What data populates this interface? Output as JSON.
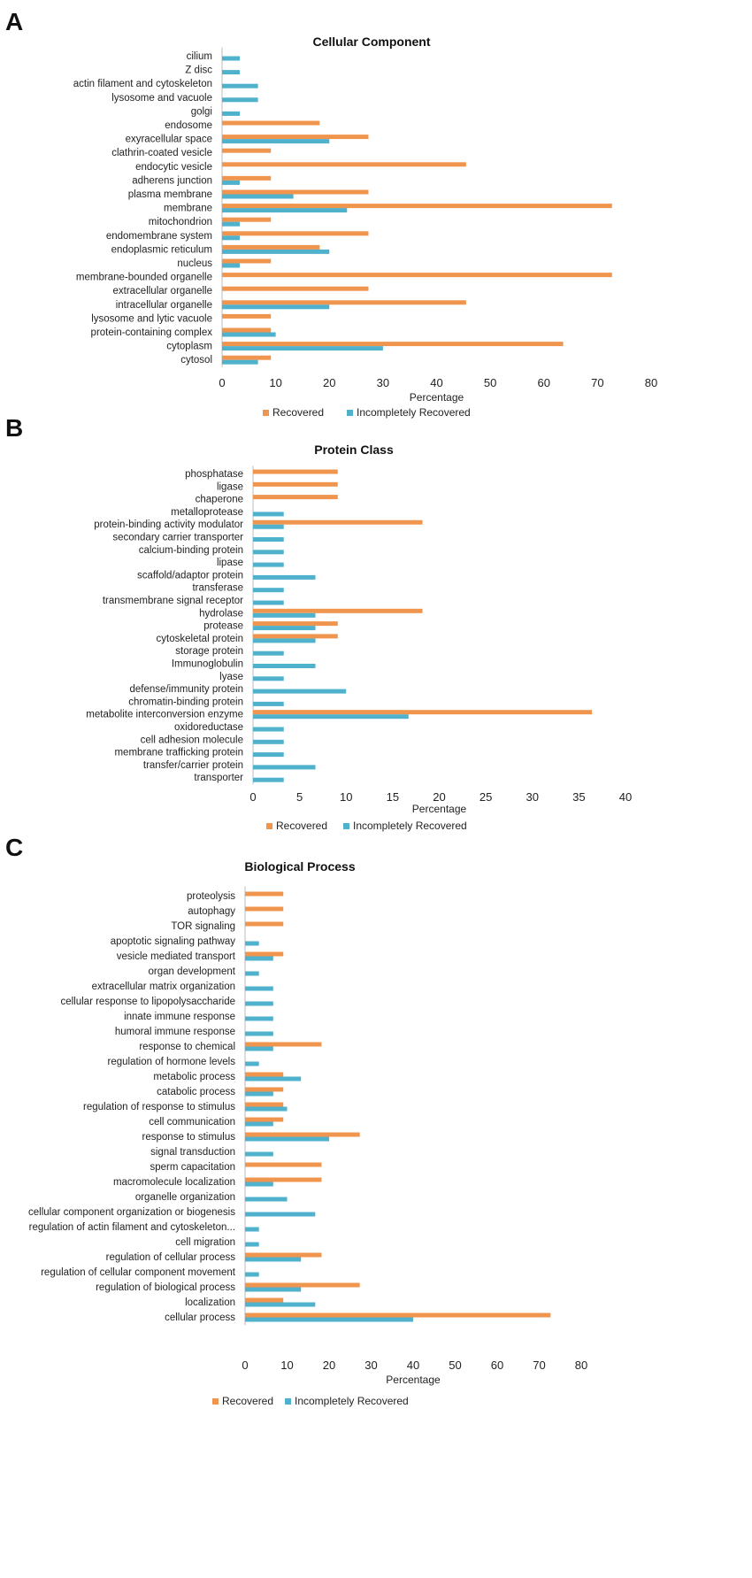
{
  "colors": {
    "recovered": "#F0954E",
    "incompletely_recovered": "#4FB1CC",
    "axis": "#bbbbbb"
  },
  "chart_data": [
    {
      "panel": "A",
      "type": "bar",
      "orientation": "horizontal",
      "title": "Cellular Component",
      "xlabel": "Percentage",
      "ylabel": "",
      "xlim": [
        0,
        80
      ],
      "xticks": [
        "0",
        "10",
        "20",
        "30",
        "40",
        "50",
        "60",
        "70",
        "80"
      ],
      "legend": "bottom",
      "categories": [
        "cilium",
        "Z disc",
        "actin filament and cytoskeleton",
        "lysosome and vacuole",
        "golgi",
        "endosome",
        "exyracellular space",
        "clathrin-coated vesicle",
        "endocytic vesicle",
        "adherens junction",
        "plasma membrane",
        "membrane",
        "mitochondrion",
        "endomembrane system",
        "endoplasmic reticulum",
        "nucleus",
        "membrane-bounded organelle",
        "extracellular organelle",
        "intracellular organelle",
        "lysosome and lytic vacuole",
        "protein-containing complex",
        "cytoplasm",
        "cytosol"
      ],
      "series": [
        {
          "name": "Recovered",
          "values": [
            0,
            0,
            0,
            0,
            0,
            18.2,
            27.3,
            9.1,
            45.5,
            9.1,
            27.3,
            72.7,
            9.1,
            27.3,
            18.2,
            9.1,
            72.7,
            27.3,
            45.5,
            9.1,
            9.1,
            63.6,
            9.1
          ]
        },
        {
          "name": "Incompletely Recovered",
          "values": [
            3.3,
            3.3,
            6.7,
            6.7,
            3.3,
            0,
            20.0,
            0,
            0,
            3.3,
            13.3,
            23.3,
            3.3,
            3.3,
            20.0,
            3.3,
            0,
            0,
            20.0,
            0,
            10.0,
            30.0,
            6.7
          ]
        }
      ]
    },
    {
      "panel": "B",
      "type": "bar",
      "orientation": "horizontal",
      "title": "Protein Class",
      "xlabel": "Percentage",
      "ylabel": "",
      "xlim": [
        0,
        40
      ],
      "xticks": [
        "0",
        "5",
        "10",
        "15",
        "20",
        "25",
        "30",
        "35",
        "40"
      ],
      "legend": "bottom",
      "categories": [
        "phosphatase",
        "ligase",
        "chaperone",
        "metalloprotease",
        "protein-binding activity modulator",
        "secondary carrier transporter",
        "calcium-binding protein",
        "lipase",
        "scaffold/adaptor protein",
        "transferase",
        "transmembrane signal receptor",
        "hydrolase",
        "protease",
        "cytoskeletal protein",
        "storage protein",
        "Immunoglobulin",
        "lyase",
        "defense/immunity protein",
        "chromatin-binding protein",
        "metabolite interconversion enzyme",
        "oxidoreductase",
        "cell adhesion molecule",
        "membrane trafficking protein",
        "transfer/carrier protein",
        "transporter"
      ],
      "series": [
        {
          "name": "Recovered",
          "values": [
            9.1,
            9.1,
            9.1,
            0,
            18.2,
            0,
            0,
            0,
            0,
            0,
            0,
            18.2,
            9.1,
            9.1,
            0,
            0,
            0,
            0,
            0,
            36.4,
            0,
            0,
            0,
            0,
            0
          ]
        },
        {
          "name": "Incompletely Recovered",
          "values": [
            0,
            0,
            0,
            3.3,
            3.3,
            3.3,
            3.3,
            3.3,
            6.7,
            3.3,
            3.3,
            6.7,
            6.7,
            6.7,
            3.3,
            6.7,
            3.3,
            10.0,
            3.3,
            16.7,
            3.3,
            3.3,
            3.3,
            6.7,
            3.3
          ]
        }
      ]
    },
    {
      "panel": "C",
      "type": "bar",
      "orientation": "horizontal",
      "title": "Biological Process",
      "xlabel": "Percentage",
      "ylabel": "",
      "xlim": [
        0,
        80
      ],
      "xticks": [
        "0",
        "10",
        "20",
        "30",
        "40",
        "50",
        "60",
        "70",
        "80"
      ],
      "legend": "bottom",
      "categories": [
        "proteolysis",
        "autophagy",
        "TOR signaling",
        "apoptotic signaling pathway",
        "vesicle mediated transport",
        "organ development",
        "extracellular matrix organization",
        "cellular response to lipopolysaccharide",
        "innate immune response",
        "humoral immune response",
        "response to chemical",
        "regulation of hormone levels",
        "metabolic process",
        "catabolic process",
        "regulation of response to stimulus",
        "cell communication",
        "response to stimulus",
        "signal transduction",
        "sperm capacitation",
        "macromolecule localization",
        "organelle organization",
        "cellular component organization or biogenesis",
        "regulation of actin filament and cytoskeleton...",
        "cell migration",
        "regulation of cellular process",
        "regulation of cellular component movement",
        "regulation of biological process",
        "localization",
        "cellular process"
      ],
      "series": [
        {
          "name": "Recovered",
          "values": [
            9.1,
            9.1,
            9.1,
            0,
            9.1,
            0,
            0,
            0,
            0,
            0,
            18.2,
            0,
            9.1,
            9.1,
            9.1,
            9.1,
            27.3,
            0,
            18.2,
            18.2,
            0,
            0,
            0,
            0,
            18.2,
            0,
            27.3,
            9.1,
            72.7
          ]
        },
        {
          "name": "Incompletely Recovered",
          "values": [
            0,
            0,
            0,
            3.3,
            6.7,
            3.3,
            6.7,
            6.7,
            6.7,
            6.7,
            6.7,
            3.3,
            13.3,
            6.7,
            10.0,
            6.7,
            20.0,
            6.7,
            0,
            6.7,
            10.0,
            16.7,
            3.3,
            3.3,
            13.3,
            3.3,
            13.3,
            16.7,
            40.0
          ]
        }
      ]
    }
  ]
}
